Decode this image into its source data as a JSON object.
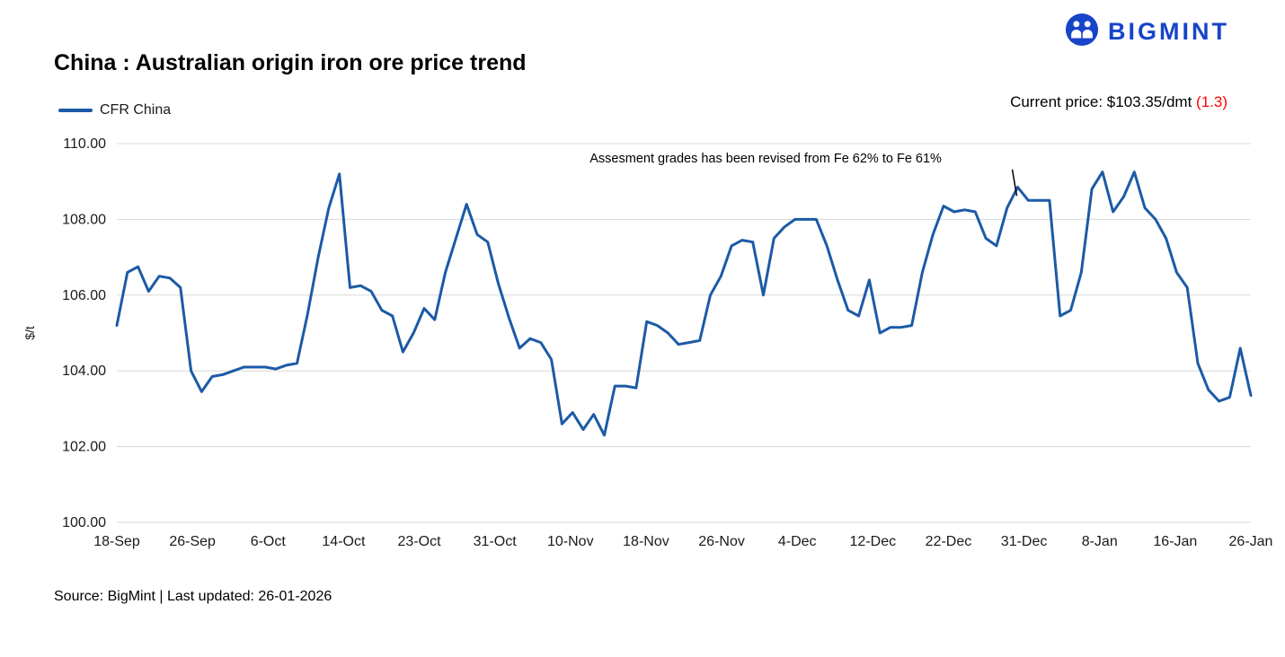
{
  "brand": {
    "name": "BIGMINT",
    "color": "#1744C9"
  },
  "header": {
    "title": "China : Australian origin iron ore price trend"
  },
  "legend": {
    "label": "CFR China"
  },
  "current_price": {
    "label": "Current price: $103.35/dmt ",
    "change": "(1.3)",
    "change_color": "#FF0000"
  },
  "footer": {
    "text": "Source: BigMint | Last updated: 26-01-2026"
  },
  "chart_data": {
    "type": "line",
    "title": "China : Australian origin iron ore price trend",
    "xlabel": "",
    "ylabel": "$/t",
    "ylim": [
      100,
      110
    ],
    "y_ticks": [
      110,
      108,
      106,
      104,
      102,
      100
    ],
    "grid": "horizontal",
    "grid_color": "#d9d9d9",
    "legend_position": "top-left",
    "x_tick_labels": [
      "18-Sep",
      "26-Sep",
      "6-Oct",
      "14-Oct",
      "23-Oct",
      "31-Oct",
      "10-Nov",
      "18-Nov",
      "26-Nov",
      "4-Dec",
      "12-Dec",
      "22-Dec",
      "31-Dec",
      "8-Jan",
      "16-Jan",
      "26-Jan"
    ],
    "series": [
      {
        "name": "CFR China",
        "color": "#1C5AA6",
        "values": [
          105.2,
          106.6,
          106.75,
          106.1,
          106.5,
          106.45,
          106.2,
          104.0,
          103.45,
          103.85,
          103.9,
          104.0,
          104.1,
          104.1,
          104.1,
          104.05,
          104.15,
          104.2,
          105.5,
          107.0,
          108.3,
          109.2,
          106.2,
          106.25,
          106.1,
          105.6,
          105.45,
          104.5,
          105.0,
          105.65,
          105.35,
          106.6,
          107.5,
          108.4,
          107.6,
          107.4,
          106.3,
          105.4,
          104.6,
          104.85,
          104.75,
          104.3,
          102.6,
          102.9,
          102.45,
          102.85,
          102.3,
          103.6,
          103.6,
          103.55,
          105.3,
          105.2,
          105.0,
          104.7,
          104.75,
          104.8,
          106.0,
          106.5,
          107.3,
          107.45,
          107.4,
          106.0,
          107.5,
          107.8,
          108.0,
          108.0,
          108.0,
          107.3,
          106.4,
          105.6,
          105.45,
          106.4,
          105.0,
          105.15,
          105.15,
          105.2,
          106.6,
          107.6,
          108.35,
          108.2,
          108.25,
          108.2,
          107.5,
          107.3,
          108.3,
          108.85,
          108.5,
          108.5,
          108.5,
          105.45,
          105.6,
          106.6,
          108.8,
          109.25,
          108.2,
          108.6,
          109.25,
          108.3,
          108.0,
          107.5,
          106.6,
          106.2,
          104.2,
          103.5,
          103.2,
          103.3,
          104.6,
          103.35
        ]
      }
    ],
    "annotation": {
      "text": "Assesment grades has been revised from Fe 62% to Fe 61%",
      "text_x_frac": 0.417,
      "text_y_value": 109.5,
      "pointer_x_frac": 0.792,
      "pointer_y_from": 109.32,
      "pointer_y_to": 108.62
    }
  }
}
